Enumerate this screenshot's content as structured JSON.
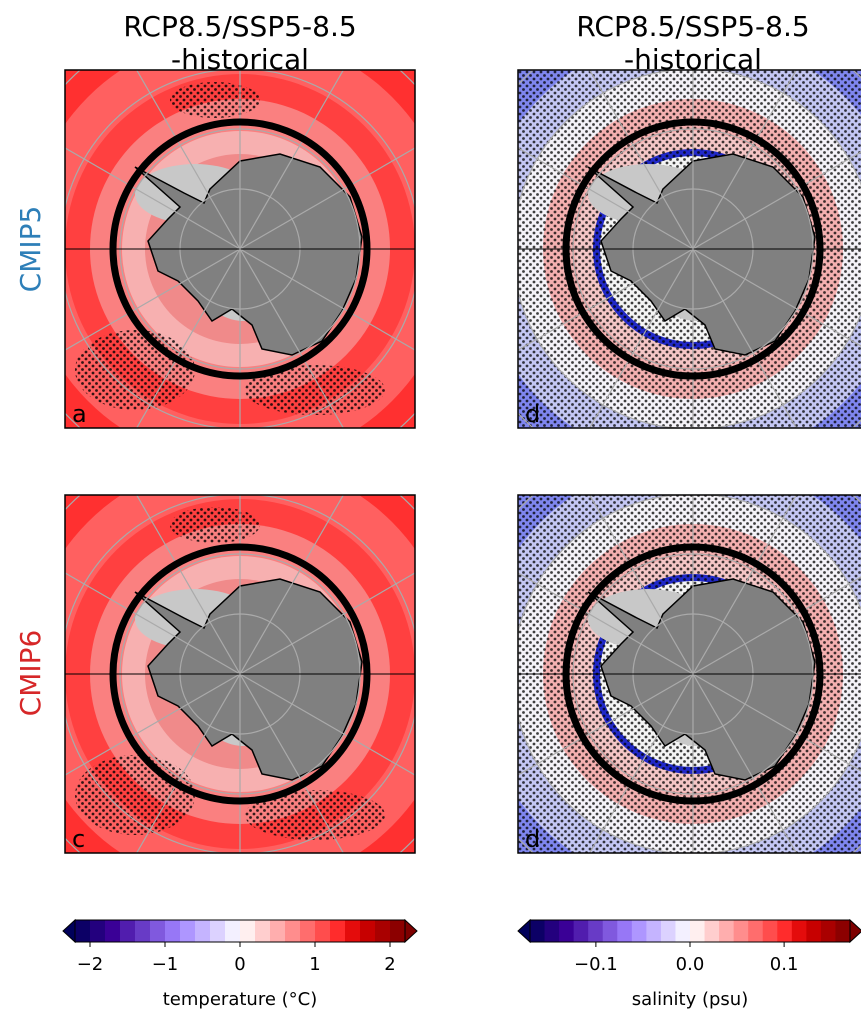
{
  "columns": [
    {
      "title": [
        "RCP8.5/SSP5-8.5",
        "-historical"
      ]
    },
    {
      "title": [
        "RCP8.5/SSP5-8.5",
        "-historical"
      ]
    }
  ],
  "rows": [
    {
      "label": "CMIP5",
      "color": "#2e7fb8"
    },
    {
      "label": "CMIP6",
      "color": "#d62728"
    }
  ],
  "panels": [
    {
      "label": "a"
    },
    {
      "label": "d"
    },
    {
      "label": "c"
    },
    {
      "label": "d"
    }
  ],
  "colorbars": [
    {
      "label": "temperature (°C)",
      "lim": [
        -2.2,
        2.2
      ],
      "ticks": [
        {
          "value": -2,
          "label": "−2"
        },
        {
          "value": -1,
          "label": "−1"
        },
        0,
        1,
        2
      ]
    },
    {
      "label": "salinity (psu)",
      "lim": [
        -0.17,
        0.17
      ],
      "ticks": [
        {
          "value": -0.1,
          "label": "−0.1"
        },
        {
          "value": 0,
          "label": "0.0"
        },
        {
          "value": 0.1,
          "label": "0.1"
        }
      ]
    }
  ]
}
